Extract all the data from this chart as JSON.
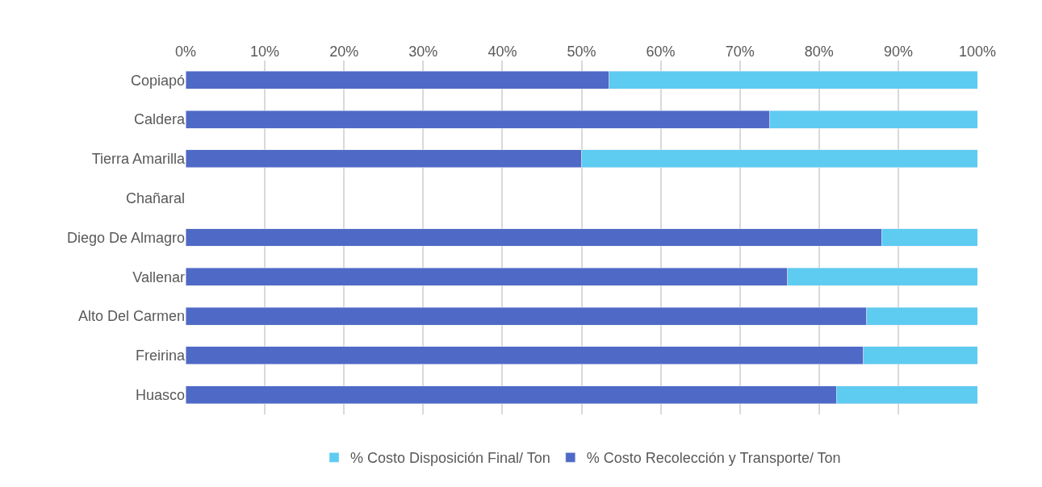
{
  "chart_data": {
    "type": "bar",
    "orientation": "horizontal",
    "stacked": true,
    "categories": [
      "Copiapó",
      "Caldera",
      "Tierra Amarilla",
      "Chañaral",
      "Diego De Almagro",
      "Vallenar",
      "Alto Del Carmen",
      "Freirina",
      "Huasco"
    ],
    "series": [
      {
        "name": "% Costo Recolección y Transporte/ Ton",
        "color": "#4f69c6",
        "values": [
          53.5,
          73.8,
          50,
          null,
          87.9,
          76,
          86,
          85.6,
          82.2
        ]
      },
      {
        "name": "% Costo Disposición Final/ Ton",
        "color": "#5ecbf1",
        "values": [
          46.5,
          26.2,
          50,
          null,
          12.1,
          24,
          14,
          14.4,
          17.8
        ]
      }
    ],
    "xlim": [
      0,
      100
    ],
    "xticks": [
      {
        "value": 0,
        "label": "0%"
      },
      {
        "value": 10,
        "label": "10%"
      },
      {
        "value": 20,
        "label": "20%"
      },
      {
        "value": 30,
        "label": "30%"
      },
      {
        "value": 40,
        "label": "40%"
      },
      {
        "value": 50,
        "label": "50%"
      },
      {
        "value": 60,
        "label": "60%"
      },
      {
        "value": 70,
        "label": "70%"
      },
      {
        "value": 80,
        "label": "80%"
      },
      {
        "value": 90,
        "label": "90%"
      },
      {
        "value": 100,
        "label": "100%"
      }
    ],
    "grid": "x",
    "legend": "bottom"
  }
}
